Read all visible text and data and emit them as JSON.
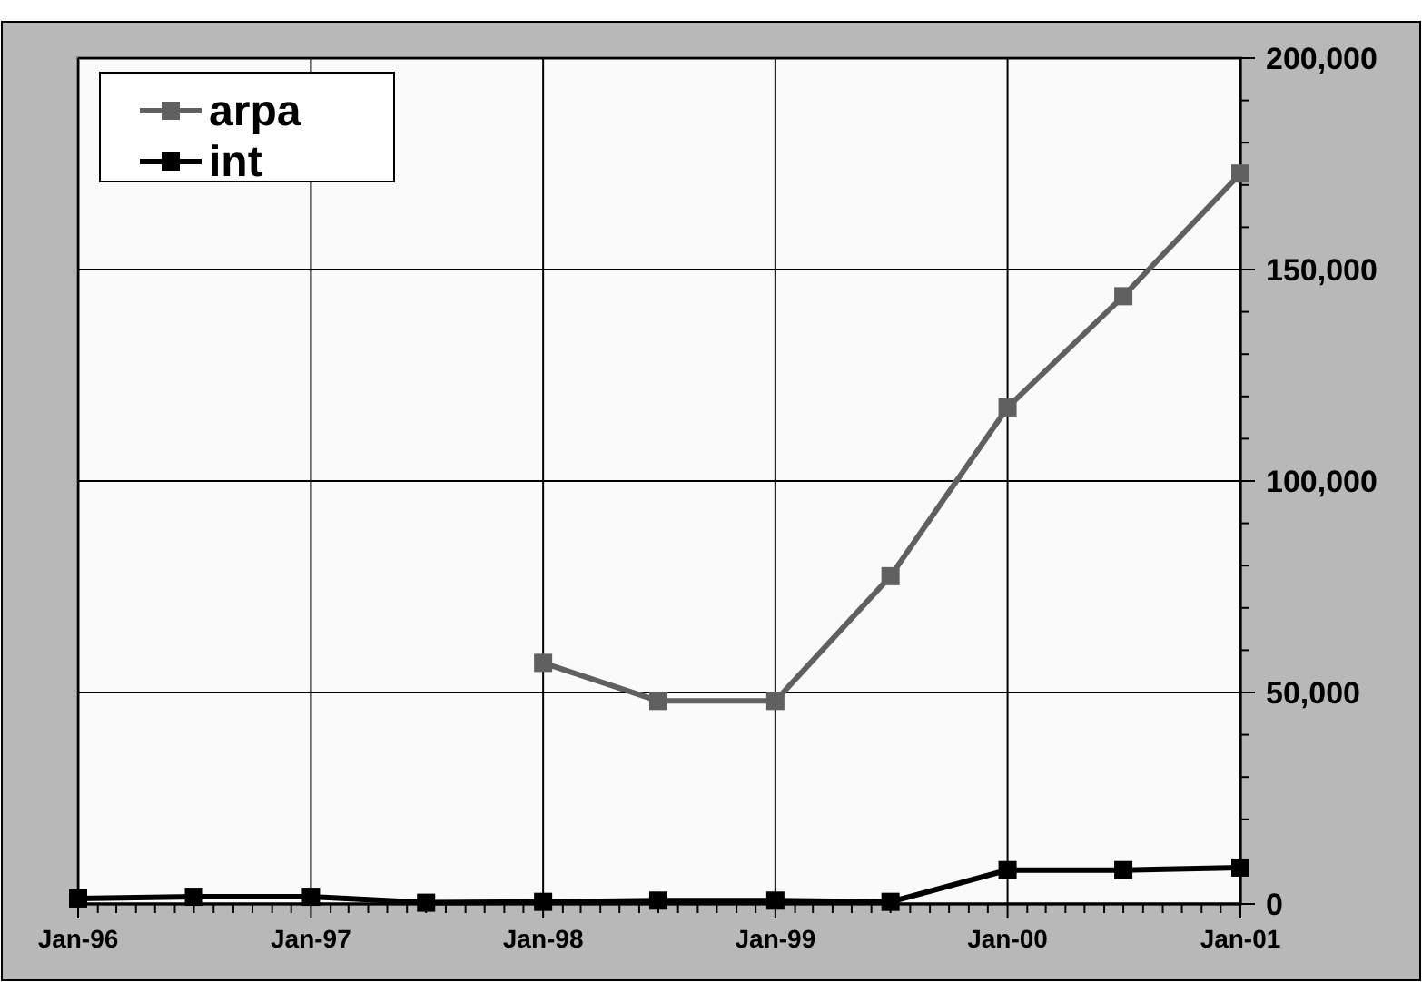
{
  "chart_data": {
    "type": "line",
    "x": [
      "1996-01",
      "1996-07",
      "1997-01",
      "1997-07",
      "1998-01",
      "1998-07",
      "1999-01",
      "1999-07",
      "2000-01",
      "2000-07",
      "2001-01"
    ],
    "series": [
      {
        "name": "arpa",
        "color": "#606060",
        "values": [
          null,
          null,
          null,
          null,
          57000,
          48000,
          48000,
          77500,
          117400,
          143700,
          172700
        ]
      },
      {
        "name": "int",
        "color": "#000000",
        "values": [
          1300,
          1700,
          1700,
          300,
          500,
          800,
          800,
          500,
          8000,
          8000,
          8600
        ]
      }
    ],
    "xlim": [
      "1996-01",
      "2001-01"
    ],
    "xticks": [
      {
        "value": "1996-01",
        "label": "Jan-96"
      },
      {
        "value": "1996-02",
        "label": null
      },
      {
        "value": "1996-03",
        "label": null
      },
      {
        "value": "1996-04",
        "label": null
      },
      {
        "value": "1996-05",
        "label": null
      },
      {
        "value": "1996-06",
        "label": null
      },
      {
        "value": "1996-07",
        "label": null
      },
      {
        "value": "1996-08",
        "label": null
      },
      {
        "value": "1996-09",
        "label": null
      },
      {
        "value": "1996-10",
        "label": null
      },
      {
        "value": "1996-11",
        "label": null
      },
      {
        "value": "1996-12",
        "label": null
      },
      {
        "value": "1997-01",
        "label": "Jan-97"
      },
      {
        "value": "1997-02",
        "label": null
      },
      {
        "value": "1997-03",
        "label": null
      },
      {
        "value": "1997-04",
        "label": null
      },
      {
        "value": "1997-05",
        "label": null
      },
      {
        "value": "1997-06",
        "label": null
      },
      {
        "value": "1997-07",
        "label": null
      },
      {
        "value": "1997-08",
        "label": null
      },
      {
        "value": "1997-09",
        "label": null
      },
      {
        "value": "1997-10",
        "label": null
      },
      {
        "value": "1997-11",
        "label": null
      },
      {
        "value": "1997-12",
        "label": null
      },
      {
        "value": "1998-01",
        "label": "Jan-98"
      },
      {
        "value": "1998-02",
        "label": null
      },
      {
        "value": "1998-03",
        "label": null
      },
      {
        "value": "1998-04",
        "label": null
      },
      {
        "value": "1998-05",
        "label": null
      },
      {
        "value": "1998-06",
        "label": null
      },
      {
        "value": "1998-07",
        "label": null
      },
      {
        "value": "1998-08",
        "label": null
      },
      {
        "value": "1998-09",
        "label": null
      },
      {
        "value": "1998-10",
        "label": null
      },
      {
        "value": "1998-11",
        "label": null
      },
      {
        "value": "1998-12",
        "label": null
      },
      {
        "value": "1999-01",
        "label": "Jan-99"
      },
      {
        "value": "1999-02",
        "label": null
      },
      {
        "value": "1999-03",
        "label": null
      },
      {
        "value": "1999-04",
        "label": null
      },
      {
        "value": "1999-05",
        "label": null
      },
      {
        "value": "1999-06",
        "label": null
      },
      {
        "value": "1999-07",
        "label": null
      },
      {
        "value": "1999-08",
        "label": null
      },
      {
        "value": "1999-09",
        "label": null
      },
      {
        "value": "1999-10",
        "label": null
      },
      {
        "value": "1999-11",
        "label": null
      },
      {
        "value": "1999-12",
        "label": null
      },
      {
        "value": "2000-01",
        "label": "Jan-00"
      },
      {
        "value": "2000-02",
        "label": null
      },
      {
        "value": "2000-03",
        "label": null
      },
      {
        "value": "2000-04",
        "label": null
      },
      {
        "value": "2000-05",
        "label": null
      },
      {
        "value": "2000-06",
        "label": null
      },
      {
        "value": "2000-07",
        "label": null
      },
      {
        "value": "2000-08",
        "label": null
      },
      {
        "value": "2000-09",
        "label": null
      },
      {
        "value": "2000-10",
        "label": null
      },
      {
        "value": "2000-11",
        "label": null
      },
      {
        "value": "2000-12",
        "label": null
      },
      {
        "value": "2001-01",
        "label": "Jan-01"
      }
    ],
    "ylim": [
      0,
      200000
    ],
    "yticks": [
      {
        "value": 0,
        "label": "0"
      },
      {
        "value": 10000,
        "label": null
      },
      {
        "value": 20000,
        "label": null
      },
      {
        "value": 30000,
        "label": null
      },
      {
        "value": 40000,
        "label": null
      },
      {
        "value": 50000,
        "label": "50,000"
      },
      {
        "value": 60000,
        "label": null
      },
      {
        "value": 70000,
        "label": null
      },
      {
        "value": 80000,
        "label": null
      },
      {
        "value": 90000,
        "label": null
      },
      {
        "value": 100000,
        "label": "100,000"
      },
      {
        "value": 110000,
        "label": null
      },
      {
        "value": 120000,
        "label": null
      },
      {
        "value": 130000,
        "label": null
      },
      {
        "value": 140000,
        "label": null
      },
      {
        "value": 150000,
        "label": "150,000"
      },
      {
        "value": 160000,
        "label": null
      },
      {
        "value": 170000,
        "label": null
      },
      {
        "value": 180000,
        "label": null
      },
      {
        "value": 190000,
        "label": null
      },
      {
        "value": 200000,
        "label": "200,000"
      }
    ],
    "grid": true,
    "legend": "top left",
    "marker": "square",
    "line_style": "solid"
  }
}
